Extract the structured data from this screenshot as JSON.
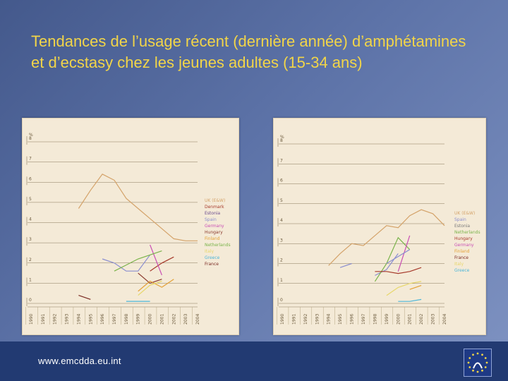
{
  "title": "Tendances de l’usage récent (dernière année) d’amphétamines et d’ecstasy chez les jeunes adultes (15-34 ans)",
  "footer": {
    "url": "www.emcdda.eu.int"
  },
  "colors": {
    "title": "#f2d548",
    "footer": "#223a72",
    "panel": "#f4ead7"
  },
  "chart_data": [
    {
      "type": "line",
      "ylabel": "%",
      "ylim": [
        0,
        8
      ],
      "yticks": [
        "0",
        "1",
        "2",
        "3",
        "4",
        "5",
        "6",
        "7",
        "8"
      ],
      "categories": [
        "1990",
        "1991",
        "1992",
        "1993",
        "1994",
        "1995",
        "1996",
        "1997",
        "1998",
        "1999",
        "2000",
        "2001",
        "2002",
        "2003",
        "2004"
      ],
      "series": [
        {
          "name": "UK (E&W)",
          "color": "#d4a36a",
          "values": [
            null,
            null,
            null,
            null,
            4.7,
            5.6,
            6.4,
            6.1,
            5.2,
            4.7,
            4.2,
            3.7,
            3.2,
            3.1,
            3.1
          ]
        },
        {
          "name": "Denmark",
          "color": "#a63a2b",
          "values": [
            null,
            null,
            null,
            null,
            null,
            null,
            null,
            null,
            null,
            null,
            1.6,
            2.0,
            2.3,
            null,
            null
          ]
        },
        {
          "name": "Estonia",
          "color": "#6a4b8e",
          "values": [
            null,
            null,
            null,
            null,
            null,
            null,
            null,
            null,
            null,
            null,
            null,
            null,
            null,
            null,
            null
          ]
        },
        {
          "name": "Spain",
          "color": "#8b8fcf",
          "values": [
            null,
            null,
            null,
            null,
            null,
            null,
            2.2,
            2.0,
            1.6,
            1.6,
            2.4,
            null,
            null,
            null,
            null
          ]
        },
        {
          "name": "Germany",
          "color": "#c94fb4",
          "values": [
            null,
            null,
            null,
            null,
            null,
            null,
            null,
            null,
            null,
            null,
            2.9,
            1.4,
            null,
            null,
            null
          ]
        },
        {
          "name": "Hungary",
          "color": "#8a3a2e",
          "values": [
            null,
            null,
            null,
            null,
            null,
            null,
            null,
            null,
            null,
            1.5,
            1.0,
            1.2,
            null,
            null,
            null
          ]
        },
        {
          "name": "Finland",
          "color": "#e3a034",
          "values": [
            null,
            null,
            null,
            null,
            null,
            null,
            null,
            null,
            null,
            0.6,
            1.1,
            0.8,
            1.2,
            null,
            null
          ]
        },
        {
          "name": "Netherlands",
          "color": "#7ab34a",
          "values": [
            null,
            null,
            null,
            null,
            null,
            null,
            null,
            1.6,
            1.9,
            2.2,
            2.4,
            2.6,
            null,
            null,
            null
          ]
        },
        {
          "name": "Italy",
          "color": "#e7d76a",
          "values": [
            null,
            null,
            null,
            null,
            null,
            null,
            null,
            null,
            null,
            0.4,
            0.9,
            1.1,
            null,
            null,
            null
          ]
        },
        {
          "name": "Greece",
          "color": "#4db6d8",
          "values": [
            null,
            null,
            null,
            null,
            null,
            null,
            null,
            null,
            0.1,
            0.1,
            0.1,
            null,
            null,
            null,
            null
          ]
        },
        {
          "name": "France",
          "color": "#7a2a22",
          "values": [
            null,
            null,
            null,
            null,
            0.4,
            0.2,
            null,
            null,
            null,
            null,
            0.5,
            null,
            null,
            null,
            null
          ]
        }
      ]
    },
    {
      "type": "line",
      "ylabel": "%",
      "ylim": [
        0,
        8
      ],
      "yticks": [
        "0",
        "1",
        "2",
        "3",
        "4",
        "5",
        "6",
        "7",
        "8"
      ],
      "categories": [
        "1990",
        "1991",
        "1992",
        "1993",
        "1994",
        "1995",
        "1996",
        "1997",
        "1998",
        "1999",
        "2000",
        "2001",
        "2002",
        "2003",
        "2004"
      ],
      "series": [
        {
          "name": "UK (E&W)",
          "color": "#d4a36a",
          "values": [
            null,
            null,
            null,
            null,
            1.9,
            2.5,
            3.0,
            2.9,
            3.4,
            3.9,
            3.8,
            4.4,
            4.7,
            4.5,
            3.9
          ]
        },
        {
          "name": "Spain",
          "color": "#8b8fcf",
          "values": [
            null,
            null,
            null,
            null,
            null,
            1.8,
            2.0,
            null,
            1.4,
            1.7,
            2.5,
            null,
            null,
            null,
            null
          ]
        },
        {
          "name": "Estonia",
          "color": "#7a7a7a",
          "values": [
            null,
            null,
            null,
            null,
            null,
            null,
            null,
            null,
            null,
            null,
            null,
            null,
            null,
            null,
            null
          ]
        },
        {
          "name": "Netherlands",
          "color": "#7ab34a",
          "values": [
            null,
            null,
            null,
            null,
            null,
            null,
            null,
            null,
            1.1,
            2.0,
            3.3,
            2.7,
            null,
            null,
            null
          ]
        },
        {
          "name": "Hungary",
          "color": "#a63a2b",
          "values": [
            null,
            null,
            null,
            null,
            null,
            null,
            null,
            null,
            null,
            null,
            null,
            null,
            null,
            null,
            null
          ]
        },
        {
          "name": "Germany",
          "color": "#c94fb4",
          "values": [
            null,
            null,
            null,
            null,
            null,
            null,
            null,
            null,
            null,
            null,
            null,
            null,
            null,
            null,
            null
          ]
        },
        {
          "name": "Finland",
          "color": "#e3a034",
          "values": [
            null,
            null,
            null,
            null,
            null,
            null,
            null,
            null,
            null,
            null,
            null,
            null,
            null,
            null,
            null
          ]
        },
        {
          "name": "France",
          "color": "#7a2a22",
          "values": [
            null,
            null,
            null,
            null,
            null,
            null,
            null,
            null,
            null,
            null,
            null,
            null,
            null,
            null,
            null
          ]
        },
        {
          "name": "Italy",
          "color": "#e7d76a",
          "values": [
            null,
            null,
            null,
            null,
            null,
            null,
            null,
            null,
            null,
            0.4,
            0.8,
            1.0,
            1.1,
            null,
            null
          ]
        },
        {
          "name": "Greece",
          "color": "#4db6d8",
          "values": [
            null,
            null,
            null,
            null,
            null,
            null,
            null,
            null,
            null,
            null,
            0.1,
            0.1,
            0.2,
            null,
            null
          ]
        }
      ],
      "extra_segments": [
        {
          "series": "Germany",
          "points": [
            [
              2000,
              1.6
            ],
            [
              2001,
              3.4
            ]
          ]
        },
        {
          "series": "Hungary",
          "points": [
            [
              1998,
              1.6
            ],
            [
              1999,
              1.6
            ],
            [
              2000,
              1.5
            ],
            [
              2001,
              1.6
            ],
            [
              2002,
              1.8
            ]
          ]
        },
        {
          "series": "Spain",
          "points": [
            [
              1999,
              2.0
            ],
            [
              2001,
              2.7
            ]
          ]
        },
        {
          "series": "Finland",
          "points": [
            [
              2001,
              0.7
            ],
            [
              2002,
              0.9
            ]
          ]
        }
      ]
    }
  ]
}
